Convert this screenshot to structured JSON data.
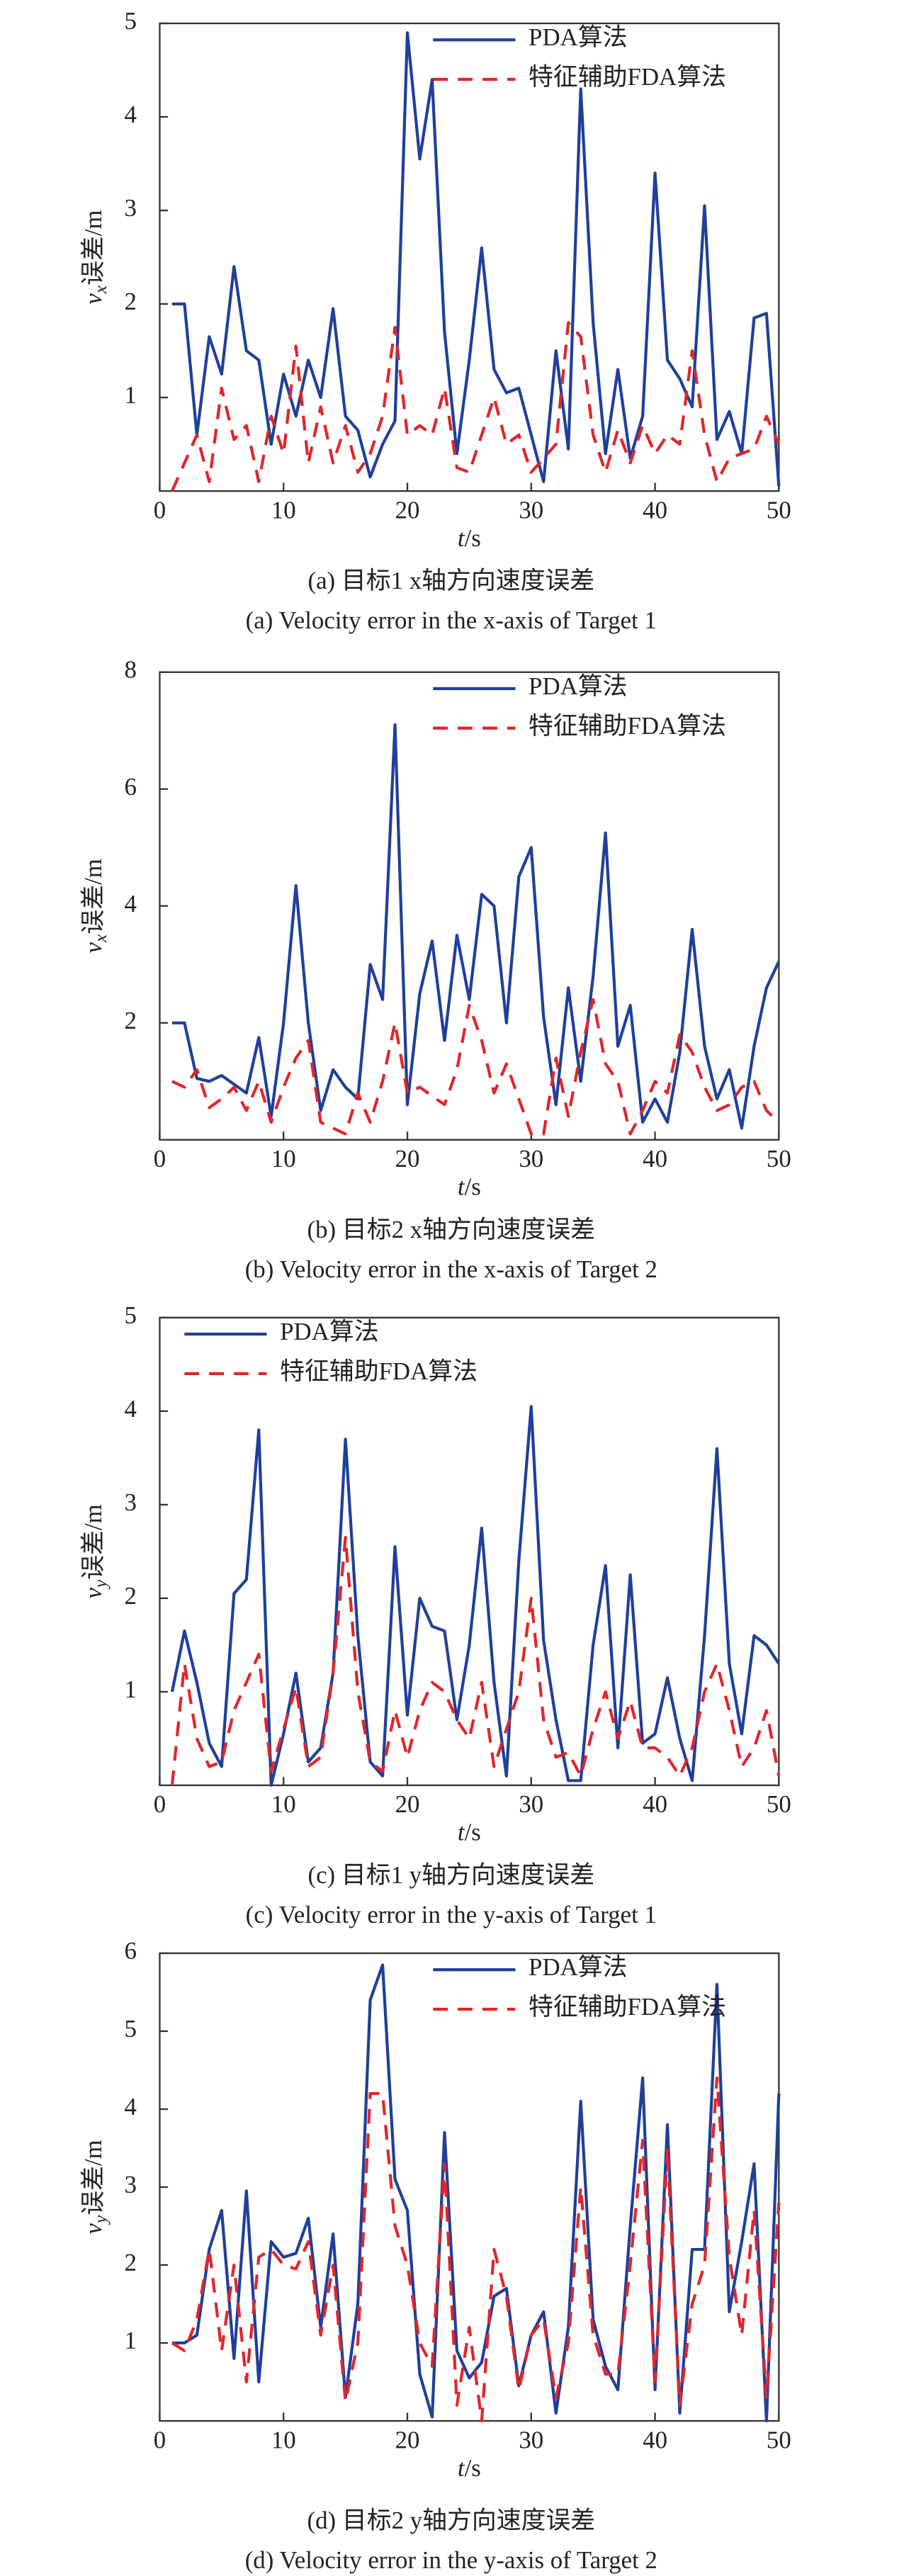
{
  "chart_data": [
    {
      "type": "line",
      "legend_loc": "upper right",
      "x": [
        1,
        2,
        3,
        4,
        5,
        6,
        7,
        8,
        9,
        10,
        11,
        12,
        13,
        14,
        15,
        16,
        17,
        18,
        19,
        20,
        21,
        22,
        23,
        24,
        25,
        26,
        27,
        28,
        29,
        30,
        31,
        32,
        33,
        34,
        35,
        36,
        37,
        38,
        39,
        40,
        41,
        42,
        43,
        44,
        45,
        46,
        47,
        48,
        49,
        50
      ],
      "xlim": [
        0,
        50
      ],
      "xticks": [
        0,
        10,
        20,
        30,
        40,
        50
      ],
      "ylim": [
        0,
        5
      ],
      "yticks": [
        1,
        2,
        3,
        4,
        5
      ],
      "xlabel": [
        "t",
        "/s"
      ],
      "ylabel": [
        "v",
        "x",
        "误差/m"
      ],
      "caption_cn": "(a) 目标1 x轴方向速度误差",
      "caption_en": "(a) Velocity error in the x-axis of Target 1",
      "series": [
        {
          "name": "PDA算法",
          "color": "#1f3f9a",
          "dash": false,
          "values": [
            2,
            2,
            0.6,
            1.65,
            1.25,
            2.4,
            1.5,
            1.4,
            0.5,
            1.25,
            0.8,
            1.4,
            1.0,
            1.95,
            0.8,
            0.65,
            0.15,
            0.5,
            0.75,
            4.9,
            3.55,
            4.4,
            1.7,
            0.4,
            1.4,
            2.6,
            1.3,
            1.05,
            1.1,
            0.6,
            0.1,
            1.5,
            0.45,
            4.3,
            1.8,
            0.4,
            1.3,
            0.35,
            0.8,
            3.4,
            1.4,
            1.2,
            0.9,
            3.05,
            0.55,
            0.85,
            0.4,
            1.85,
            1.9,
            0.05
          ]
        },
        {
          "name": "特征辅助FDA算法",
          "color": "#e0262a",
          "dash": true,
          "values": [
            0,
            0.3,
            0.6,
            0.1,
            1.1,
            0.55,
            0.7,
            0.1,
            0.8,
            0.4,
            1.55,
            0.3,
            0.9,
            0.3,
            0.7,
            0.2,
            0.4,
            0.8,
            1.75,
            0.6,
            0.7,
            0.6,
            1.1,
            0.25,
            0.2,
            0.6,
            1.0,
            0.5,
            0.6,
            0.2,
            0.35,
            0.5,
            1.8,
            1.65,
            0.6,
            0.2,
            0.65,
            0.3,
            0.7,
            0.4,
            0.6,
            0.5,
            1.5,
            0.6,
            0.1,
            0.35,
            0.4,
            0.45,
            0.8,
            0.5
          ]
        }
      ]
    },
    {
      "type": "line",
      "legend_loc": "upper right",
      "x": [
        1,
        2,
        3,
        4,
        5,
        6,
        7,
        8,
        9,
        10,
        11,
        12,
        13,
        14,
        15,
        16,
        17,
        18,
        19,
        20,
        21,
        22,
        23,
        24,
        25,
        26,
        27,
        28,
        29,
        30,
        31,
        32,
        33,
        34,
        35,
        36,
        37,
        38,
        39,
        40,
        41,
        42,
        43,
        44,
        45,
        46,
        47,
        48,
        49,
        50
      ],
      "xlim": [
        0,
        50
      ],
      "xticks": [
        0,
        10,
        20,
        30,
        40,
        50
      ],
      "ylim": [
        0,
        8
      ],
      "yticks": [
        2,
        4,
        6,
        8
      ],
      "xlabel": [
        "t",
        "/s"
      ],
      "ylabel": [
        "v",
        "x",
        "误差/m"
      ],
      "caption_cn": "(b) 目标2 x轴方向速度误差",
      "caption_en": "(b) Velocity error in the x-axis of Target 2",
      "series": [
        {
          "name": "PDA算法",
          "color": "#1f3f9a",
          "dash": false,
          "values": [
            2,
            2,
            1.05,
            1.0,
            1.1,
            0.95,
            0.8,
            1.75,
            0.4,
            2.0,
            4.35,
            2.0,
            0.5,
            1.2,
            0.9,
            0.7,
            3.0,
            2.4,
            7.1,
            0.6,
            2.5,
            3.4,
            1.7,
            3.5,
            2.4,
            4.2,
            4.0,
            2.0,
            4.5,
            5.0,
            2.1,
            0.6,
            2.6,
            1.0,
            2.8,
            5.25,
            1.6,
            2.3,
            0.3,
            0.7,
            0.3,
            1.5,
            3.6,
            1.6,
            0.7,
            1.2,
            0.2,
            1.6,
            2.6,
            3.05
          ]
        },
        {
          "name": "特征辅助FDA算法",
          "color": "#e0262a",
          "dash": true,
          "values": [
            1.0,
            0.9,
            1.2,
            0.55,
            0.7,
            0.9,
            0.5,
            1.0,
            0.3,
            0.9,
            1.4,
            1.7,
            0.3,
            0.2,
            0.1,
            0.8,
            0.3,
            1.0,
            2.0,
            0.8,
            0.9,
            0.75,
            0.6,
            1.2,
            2.3,
            1.7,
            0.8,
            1.3,
            0.7,
            0.1,
            0.1,
            1.4,
            0.4,
            1.5,
            2.4,
            1.3,
            1.0,
            0.1,
            0.5,
            1.0,
            0.8,
            1.8,
            1.5,
            0.9,
            0.5,
            0.6,
            0.9,
            1.0,
            0.5,
            0.3
          ]
        }
      ]
    },
    {
      "type": "line",
      "legend_loc": "upper left",
      "x": [
        1,
        2,
        3,
        4,
        5,
        6,
        7,
        8,
        9,
        10,
        11,
        12,
        13,
        14,
        15,
        16,
        17,
        18,
        19,
        20,
        21,
        22,
        23,
        24,
        25,
        26,
        27,
        28,
        29,
        30,
        31,
        32,
        33,
        34,
        35,
        36,
        37,
        38,
        39,
        40,
        41,
        42,
        43,
        44,
        45,
        46,
        47,
        48,
        49,
        50
      ],
      "xlim": [
        0,
        50
      ],
      "xticks": [
        0,
        10,
        20,
        30,
        40,
        50
      ],
      "ylim": [
        0,
        5
      ],
      "yticks": [
        1,
        2,
        3,
        4,
        5
      ],
      "xlabel": [
        "t",
        "/s"
      ],
      "ylabel": [
        "v",
        "y",
        "误差/m"
      ],
      "caption_cn": "(c) 目标1 y轴方向速度误差",
      "caption_en": "(c) Velocity error in the y-axis of Target 1",
      "series": [
        {
          "name": "PDA算法",
          "color": "#1f3f9a",
          "dash": false,
          "values": [
            1.0,
            1.65,
            1.1,
            0.45,
            0.2,
            2.05,
            2.2,
            3.8,
            0.0,
            0.55,
            1.2,
            0.25,
            0.4,
            1.2,
            3.7,
            1.6,
            0.25,
            0.1,
            2.55,
            0.75,
            2.0,
            1.7,
            1.65,
            0.7,
            1.5,
            2.75,
            1.1,
            0.1,
            2.4,
            4.05,
            1.55,
            0.7,
            0.05,
            0.05,
            1.5,
            2.35,
            0.4,
            2.25,
            0.45,
            0.55,
            1.15,
            0.5,
            0.05,
            1.6,
            3.6,
            1.3,
            0.55,
            1.6,
            1.5,
            1.3
          ]
        },
        {
          "name": "特征辅助FDA算法",
          "color": "#e0262a",
          "dash": true,
          "values": [
            0,
            1.3,
            0.5,
            0.2,
            0.25,
            0.8,
            1.1,
            1.4,
            0.15,
            0.6,
            1.05,
            0.2,
            0.3,
            1.2,
            2.65,
            1.0,
            0.25,
            0.15,
            0.8,
            0.3,
            0.8,
            1.1,
            1.0,
            0.7,
            0.5,
            1.1,
            0.2,
            0.6,
            1.0,
            2.0,
            0.7,
            0.3,
            0.35,
            0.1,
            0.6,
            1.0,
            0.5,
            0.9,
            0.4,
            0.4,
            0.3,
            0.1,
            0.4,
            1.0,
            1.3,
            0.8,
            0.2,
            0.4,
            0.8,
            0.1
          ]
        }
      ]
    },
    {
      "type": "line",
      "legend_loc": "upper right",
      "x": [
        1,
        2,
        3,
        4,
        5,
        6,
        7,
        8,
        9,
        10,
        11,
        12,
        13,
        14,
        15,
        16,
        17,
        18,
        19,
        20,
        21,
        22,
        23,
        24,
        25,
        26,
        27,
        28,
        29,
        30,
        31,
        32,
        33,
        34,
        35,
        36,
        37,
        38,
        39,
        40,
        41,
        42,
        43,
        44,
        45,
        46,
        47,
        48,
        49,
        50
      ],
      "xlim": [
        0,
        50
      ],
      "xticks": [
        0,
        10,
        20,
        30,
        40,
        50
      ],
      "ylim": [
        0,
        6
      ],
      "yticks": [
        1,
        2,
        3,
        4,
        5,
        6
      ],
      "xlabel": [
        "t",
        "/s"
      ],
      "ylabel": [
        "v",
        "y",
        "误差/m"
      ],
      "caption_cn": "(d) 目标2 y轴方向速度误差",
      "caption_en": "(d) Velocity error in the y-axis of Target 2",
      "series": [
        {
          "name": "PDA算法",
          "color": "#1f3f9a",
          "dash": false,
          "values": [
            1.0,
            1.0,
            1.1,
            2.2,
            2.7,
            0.8,
            2.95,
            0.5,
            2.3,
            2.1,
            2.15,
            2.6,
            1.2,
            2.4,
            0.3,
            1.5,
            5.4,
            5.85,
            3.1,
            2.7,
            0.6,
            0.05,
            3.7,
            0.9,
            0.55,
            0.75,
            1.6,
            1.7,
            0.45,
            1.1,
            1.4,
            0.1,
            1.2,
            4.1,
            1.3,
            0.7,
            0.4,
            2.5,
            4.4,
            0.4,
            3.8,
            0.1,
            2.2,
            2.2,
            5.6,
            1.4,
            2.3,
            3.3,
            0.0,
            4.2
          ]
        },
        {
          "name": "特征辅助FDA算法",
          "color": "#e0262a",
          "dash": true,
          "values": [
            1.0,
            0.9,
            1.3,
            2.2,
            0.9,
            2.0,
            0.5,
            2.1,
            2.2,
            2.0,
            1.95,
            2.3,
            1.1,
            2.0,
            0.25,
            1.0,
            4.2,
            4.2,
            2.5,
            2.0,
            1.0,
            0.7,
            3.3,
            0.2,
            1.2,
            0.0,
            2.2,
            1.6,
            0.4,
            1.1,
            1.3,
            0.3,
            1.0,
            3.0,
            1.1,
            0.6,
            0.6,
            2.0,
            3.6,
            0.5,
            3.5,
            0.2,
            1.5,
            2.0,
            4.4,
            2.1,
            1.1,
            2.7,
            0.3,
            2.8
          ]
        }
      ]
    }
  ]
}
